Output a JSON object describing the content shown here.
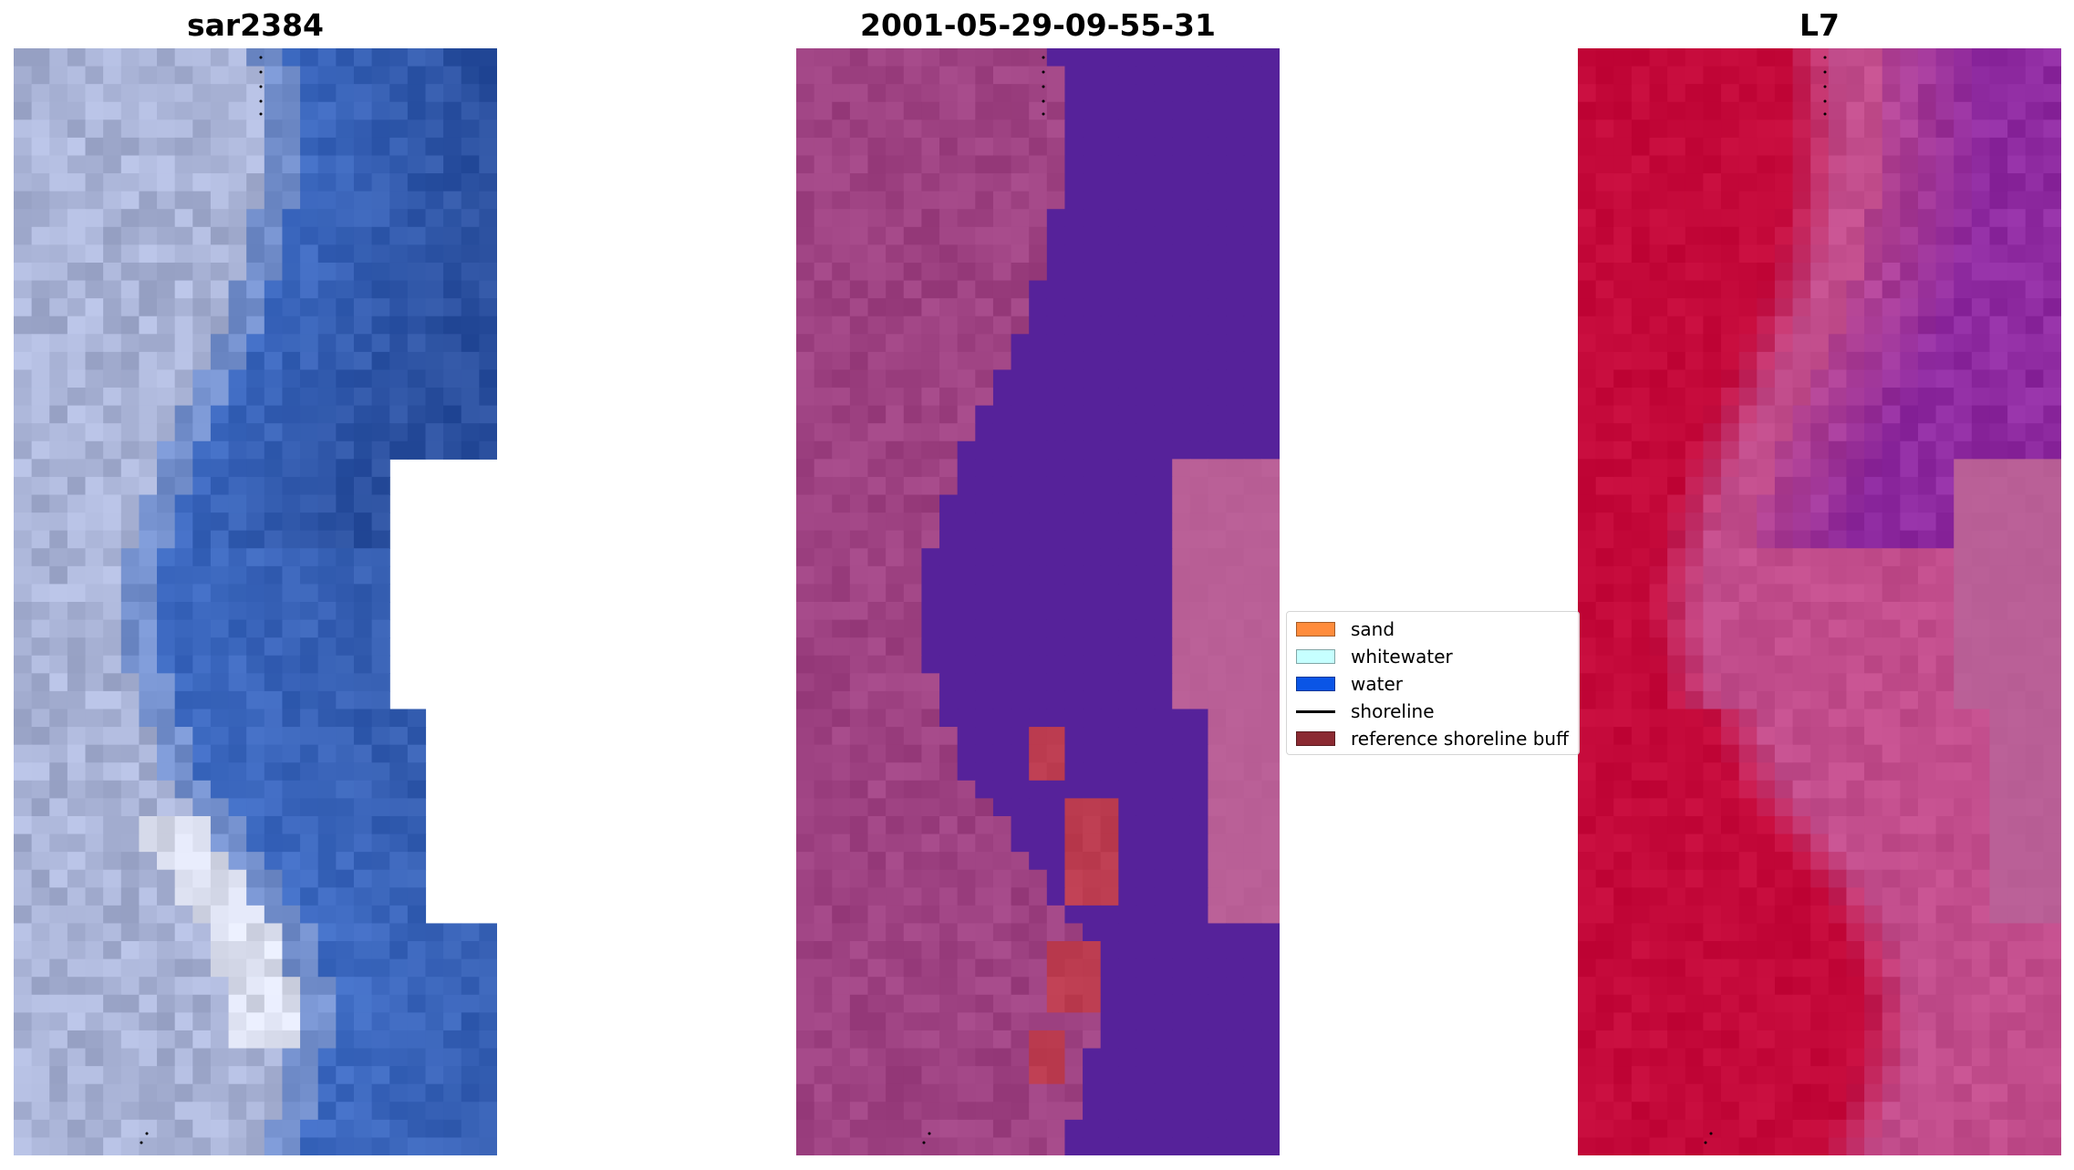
{
  "panels": [
    {
      "title": "sar2384",
      "palette": "rgb"
    },
    {
      "title": "2001-05-29-09-55-31",
      "palette": "classified"
    },
    {
      "title": "L7",
      "palette": "index"
    }
  ],
  "legend": {
    "items": [
      {
        "label": "sand",
        "color": "#ff8c3c",
        "kind": "patch"
      },
      {
        "label": "whitewater",
        "color": "#c6ffff",
        "kind": "patch"
      },
      {
        "label": "water",
        "color": "#0a55e6",
        "kind": "patch"
      },
      {
        "label": "shoreline",
        "color": "#000000",
        "kind": "line"
      },
      {
        "label": "reference shoreline buff",
        "color": "#8b2a32",
        "kind": "patch"
      }
    ]
  },
  "colors": {
    "rgb_land": "#a9b3d6",
    "rgb_water": "#3f6cc4",
    "rgb_deep": "#2a4f9e",
    "classified_land": "#9e4282",
    "classified_water": "#56229a",
    "classified_buffer": "#bc3c50",
    "classified_nodata": "#b95f96",
    "index_red": "#c4093a",
    "index_pink": "#c24d8c",
    "index_purple": "#8e2aa0",
    "index_nodata": "#b95f96"
  }
}
